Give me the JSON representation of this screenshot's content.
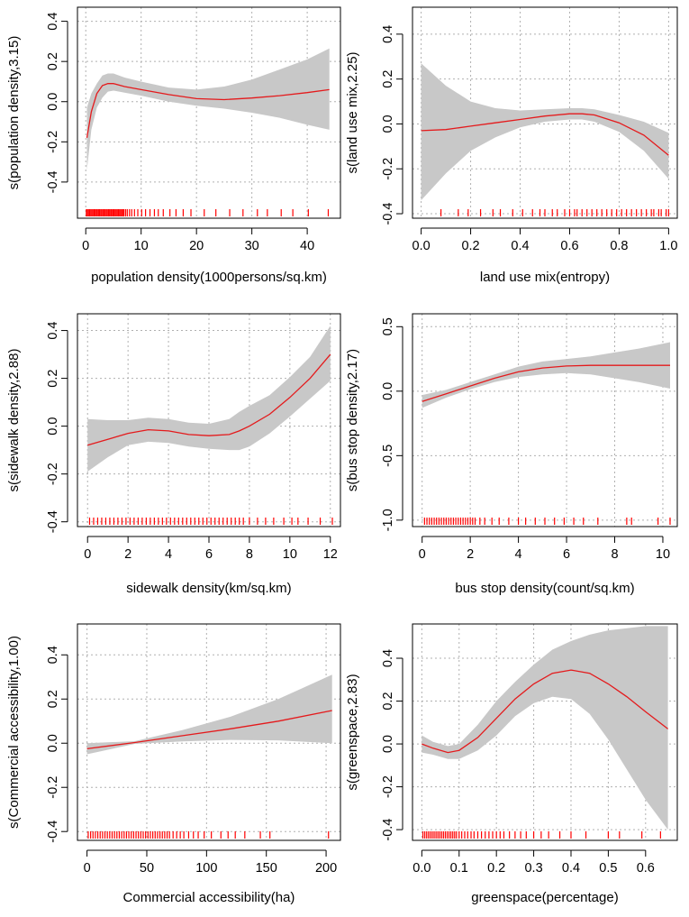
{
  "chart_data": [
    {
      "type": "line",
      "panel": "top-left",
      "xlabel": "population density(1000persons/sq.km)",
      "ylabel": "s(population density,3.15)",
      "xlim": [
        -1.5,
        46
      ],
      "ylim": [
        -0.58,
        0.47
      ],
      "xticks": [
        0,
        10,
        20,
        30,
        40
      ],
      "yticks": [
        -0.4,
        -0.2,
        0.0,
        0.2,
        0.4
      ],
      "xtick_labels": [
        "0",
        "10",
        "20",
        "30",
        "40"
      ],
      "ytick_labels": [
        "-0.4",
        "-0.2",
        "0.0",
        "0.2",
        "0.4"
      ],
      "grid": true,
      "line_color": "#e41a1c",
      "band_color": "#c8c8c8",
      "rug_color": "#ff0000",
      "x": [
        0.2,
        1,
        2,
        3,
        4,
        5,
        7,
        10,
        15,
        20,
        25,
        30,
        35,
        40,
        44
      ],
      "fit": [
        -0.18,
        -0.05,
        0.04,
        0.08,
        0.09,
        0.09,
        0.075,
        0.06,
        0.035,
        0.015,
        0.01,
        0.018,
        0.03,
        0.045,
        0.06
      ],
      "lower": [
        -0.34,
        -0.14,
        -0.03,
        0.02,
        0.05,
        0.055,
        0.045,
        0.03,
        0.0,
        -0.02,
        -0.035,
        -0.055,
        -0.08,
        -0.115,
        -0.14
      ],
      "upper": [
        -0.03,
        0.04,
        0.09,
        0.13,
        0.14,
        0.14,
        0.12,
        0.1,
        0.07,
        0.06,
        0.075,
        0.11,
        0.16,
        0.21,
        0.265
      ],
      "rug": [
        0.1,
        0.3,
        0.5,
        0.7,
        0.9,
        1.1,
        1.3,
        1.5,
        1.7,
        1.9,
        2.1,
        2.3,
        2.5,
        2.7,
        2.9,
        3.1,
        3.3,
        3.5,
        3.7,
        3.9,
        4.1,
        4.3,
        4.5,
        4.7,
        4.9,
        5.1,
        5.3,
        5.5,
        5.7,
        5.9,
        6.1,
        6.3,
        6.5,
        6.7,
        6.9,
        7.2,
        7.5,
        7.9,
        8.3,
        8.8,
        9.4,
        10.1,
        10.8,
        11.6,
        12.4,
        13.1,
        14,
        15.2,
        16.3,
        17.6,
        19,
        21.4,
        23.5,
        26,
        28.4,
        31,
        32.8,
        35.3,
        37.4,
        40.2,
        43.8
      ]
    },
    {
      "type": "line",
      "panel": "top-right",
      "xlabel": "land use mix(entropy)",
      "ylabel": "s(land use mix,2.25)",
      "xlim": [
        -0.035,
        1.035
      ],
      "ylim": [
        -0.42,
        0.52
      ],
      "xticks": [
        0.0,
        0.2,
        0.4,
        0.6,
        0.8,
        1.0
      ],
      "yticks": [
        -0.4,
        -0.2,
        0.0,
        0.2,
        0.4
      ],
      "xtick_labels": [
        "0.0",
        "0.2",
        "0.4",
        "0.6",
        "0.8",
        "1.0"
      ],
      "ytick_labels": [
        "-0.4",
        "-0.2",
        "0.0",
        "0.2",
        "0.4"
      ],
      "grid": true,
      "line_color": "#e41a1c",
      "band_color": "#c8c8c8",
      "rug_color": "#ff0000",
      "x": [
        0.0,
        0.1,
        0.2,
        0.3,
        0.4,
        0.5,
        0.6,
        0.65,
        0.7,
        0.8,
        0.9,
        1.0
      ],
      "fit": [
        -0.03,
        -0.025,
        -0.01,
        0.005,
        0.02,
        0.035,
        0.045,
        0.045,
        0.04,
        0.005,
        -0.05,
        -0.14
      ],
      "lower": [
        -0.34,
        -0.22,
        -0.12,
        -0.06,
        -0.015,
        0.01,
        0.02,
        0.02,
        0.01,
        -0.035,
        -0.12,
        -0.245
      ],
      "upper": [
        0.27,
        0.17,
        0.1,
        0.07,
        0.06,
        0.065,
        0.07,
        0.07,
        0.065,
        0.04,
        0.01,
        -0.04
      ],
      "rug": [
        0.08,
        0.15,
        0.19,
        0.24,
        0.29,
        0.32,
        0.37,
        0.41,
        0.45,
        0.48,
        0.5,
        0.53,
        0.55,
        0.58,
        0.6,
        0.62,
        0.63,
        0.65,
        0.67,
        0.69,
        0.71,
        0.73,
        0.75,
        0.77,
        0.79,
        0.81,
        0.83,
        0.85,
        0.87,
        0.89,
        0.91,
        0.93,
        0.94,
        0.96,
        0.97,
        0.99,
        1.0
      ]
    },
    {
      "type": "line",
      "panel": "middle-left",
      "xlabel": "sidewalk density(km/sq.km)",
      "ylabel": "s(sidewalk density,2.88)",
      "xlim": [
        -0.5,
        12.5
      ],
      "ylim": [
        -0.42,
        0.47
      ],
      "xticks": [
        0,
        2,
        4,
        6,
        8,
        10,
        12
      ],
      "yticks": [
        -0.4,
        -0.2,
        0.0,
        0.2,
        0.4
      ],
      "xtick_labels": [
        "0",
        "2",
        "4",
        "6",
        "8",
        "10",
        "12"
      ],
      "ytick_labels": [
        "-0.4",
        "-0.2",
        "0.0",
        "0.2",
        "0.4"
      ],
      "grid": true,
      "line_color": "#e41a1c",
      "band_color": "#c8c8c8",
      "rug_color": "#ff0000",
      "x": [
        0,
        1,
        2,
        3,
        4,
        5,
        6,
        7,
        7.5,
        8,
        9,
        10,
        11,
        12
      ],
      "fit": [
        -0.08,
        -0.055,
        -0.03,
        -0.015,
        -0.02,
        -0.035,
        -0.04,
        -0.035,
        -0.02,
        0.0,
        0.05,
        0.12,
        0.2,
        0.3
      ],
      "lower": [
        -0.19,
        -0.13,
        -0.08,
        -0.065,
        -0.07,
        -0.085,
        -0.095,
        -0.1,
        -0.1,
        -0.085,
        -0.03,
        0.04,
        0.115,
        0.19
      ],
      "upper": [
        0.03,
        0.025,
        0.025,
        0.035,
        0.03,
        0.015,
        0.01,
        0.03,
        0.06,
        0.085,
        0.13,
        0.205,
        0.29,
        0.42
      ],
      "rug": [
        0.1,
        0.3,
        0.5,
        0.7,
        0.9,
        1.1,
        1.3,
        1.5,
        1.7,
        1.9,
        2.1,
        2.3,
        2.5,
        2.7,
        2.9,
        3.1,
        3.3,
        3.5,
        3.7,
        3.9,
        4.1,
        4.3,
        4.5,
        4.7,
        4.9,
        5.1,
        5.3,
        5.5,
        5.7,
        5.9,
        6.1,
        6.3,
        6.5,
        6.7,
        6.9,
        7.1,
        7.3,
        7.5,
        7.7,
        8.0,
        8.4,
        8.8,
        9.2,
        9.7,
        10.1,
        10.4,
        10.9,
        11.5,
        12.1
      ]
    },
    {
      "type": "line",
      "panel": "middle-right",
      "xlabel": "bus stop density(count/sq.km)",
      "ylabel": "s(bus stop density,2.17)",
      "xlim": [
        -0.4,
        10.6
      ],
      "ylim": [
        -1.05,
        0.6
      ],
      "xticks": [
        0,
        2,
        4,
        6,
        8,
        10
      ],
      "yticks": [
        -1.0,
        -0.5,
        0.0,
        0.5
      ],
      "xtick_labels": [
        "0",
        "2",
        "4",
        "6",
        "8",
        "10"
      ],
      "ytick_labels": [
        "-1.0",
        "-0.5",
        "0.0",
        "0.5"
      ],
      "grid": true,
      "line_color": "#e41a1c",
      "band_color": "#c8c8c8",
      "rug_color": "#ff0000",
      "x": [
        0,
        1,
        2,
        3,
        4,
        5,
        6,
        7,
        8,
        9,
        10.3
      ],
      "fit": [
        -0.08,
        -0.02,
        0.04,
        0.1,
        0.15,
        0.18,
        0.195,
        0.2,
        0.2,
        0.2,
        0.2
      ],
      "lower": [
        -0.13,
        -0.05,
        0.015,
        0.07,
        0.11,
        0.13,
        0.14,
        0.13,
        0.1,
        0.07,
        0.02
      ],
      "upper": [
        -0.03,
        0.01,
        0.07,
        0.13,
        0.19,
        0.23,
        0.25,
        0.27,
        0.3,
        0.33,
        0.38
      ],
      "rug": [
        0.1,
        0.2,
        0.3,
        0.4,
        0.5,
        0.6,
        0.7,
        0.8,
        0.9,
        1.0,
        1.1,
        1.2,
        1.3,
        1.4,
        1.5,
        1.6,
        1.7,
        1.8,
        1.9,
        2.0,
        2.1,
        2.2,
        2.4,
        2.6,
        2.9,
        3.2,
        3.6,
        4.0,
        4.3,
        4.7,
        5.1,
        5.5,
        5.9,
        6.3,
        6.7,
        7.3,
        8.5,
        8.7,
        9.8,
        10.3
      ]
    },
    {
      "type": "line",
      "panel": "bottom-left",
      "xlabel": "Commercial accessibility(ha)",
      "ylabel": "s(Commercial accessibility,1.00)",
      "xlim": [
        -8,
        212
      ],
      "ylim": [
        -0.44,
        0.54
      ],
      "xticks": [
        0,
        50,
        100,
        150,
        200
      ],
      "yticks": [
        -0.4,
        -0.2,
        0.0,
        0.2,
        0.4
      ],
      "xtick_labels": [
        "0",
        "50",
        "100",
        "150",
        "200"
      ],
      "ytick_labels": [
        "-0.4",
        "-0.2",
        "0.0",
        "0.2",
        "0.4"
      ],
      "grid": true,
      "line_color": "#e41a1c",
      "band_color": "#c8c8c8",
      "rug_color": "#ff0000",
      "x": [
        0,
        40,
        80,
        120,
        160,
        205
      ],
      "fit": [
        -0.025,
        0.003,
        0.034,
        0.065,
        0.1,
        0.148
      ],
      "lower": [
        -0.05,
        -0.003,
        0.008,
        0.015,
        0.013,
        0.0
      ],
      "upper": [
        0.0,
        0.009,
        0.06,
        0.12,
        0.2,
        0.31
      ],
      "rug": [
        1,
        3,
        5,
        7,
        9,
        11,
        13,
        15,
        17,
        19,
        21,
        23,
        25,
        27,
        29,
        31,
        33,
        35,
        37,
        39,
        41,
        43,
        45,
        47,
        49,
        51,
        53,
        55,
        57,
        59,
        61,
        63,
        65,
        67,
        69,
        72,
        75,
        78,
        81,
        85,
        89,
        93,
        98,
        104,
        112,
        118,
        124,
        132,
        145,
        153,
        202
      ]
    },
    {
      "type": "line",
      "panel": "bottom-right",
      "xlabel": "greenspace(percentage)",
      "ylabel": "s(greenspace,2.83)",
      "xlim": [
        -0.025,
        0.685
      ],
      "ylim": [
        -0.45,
        0.56
      ],
      "xticks": [
        0.0,
        0.1,
        0.2,
        0.3,
        0.4,
        0.5,
        0.6
      ],
      "yticks": [
        -0.4,
        -0.2,
        0.0,
        0.2,
        0.4
      ],
      "xtick_labels": [
        "0.0",
        "0.1",
        "0.2",
        "0.3",
        "0.4",
        "0.5",
        "0.6"
      ],
      "ytick_labels": [
        "-0.4",
        "-0.2",
        "0.0",
        "0.2",
        "0.4"
      ],
      "grid": true,
      "line_color": "#e41a1c",
      "band_color": "#c8c8c8",
      "rug_color": "#ff0000",
      "x": [
        0.0,
        0.03,
        0.07,
        0.1,
        0.15,
        0.2,
        0.25,
        0.3,
        0.35,
        0.4,
        0.45,
        0.5,
        0.55,
        0.6,
        0.66
      ],
      "fit": [
        0.0,
        -0.02,
        -0.04,
        -0.03,
        0.03,
        0.12,
        0.21,
        0.28,
        0.33,
        0.345,
        0.33,
        0.28,
        0.22,
        0.15,
        0.07
      ],
      "lower": [
        -0.04,
        -0.05,
        -0.07,
        -0.07,
        -0.03,
        0.04,
        0.13,
        0.19,
        0.22,
        0.21,
        0.14,
        0.02,
        -0.12,
        -0.26,
        -0.4
      ],
      "upper": [
        0.04,
        0.01,
        -0.01,
        0.0,
        0.09,
        0.2,
        0.29,
        0.37,
        0.44,
        0.48,
        0.51,
        0.53,
        0.54,
        0.55,
        0.55
      ],
      "rug": [
        0.003,
        0.008,
        0.013,
        0.018,
        0.023,
        0.028,
        0.033,
        0.038,
        0.043,
        0.048,
        0.053,
        0.058,
        0.063,
        0.068,
        0.073,
        0.078,
        0.083,
        0.088,
        0.093,
        0.1,
        0.107,
        0.115,
        0.123,
        0.132,
        0.14,
        0.15,
        0.16,
        0.17,
        0.18,
        0.19,
        0.2,
        0.21,
        0.22,
        0.235,
        0.25,
        0.265,
        0.28,
        0.3,
        0.32,
        0.34,
        0.37,
        0.4,
        0.44,
        0.5,
        0.53,
        0.59,
        0.64
      ]
    }
  ]
}
